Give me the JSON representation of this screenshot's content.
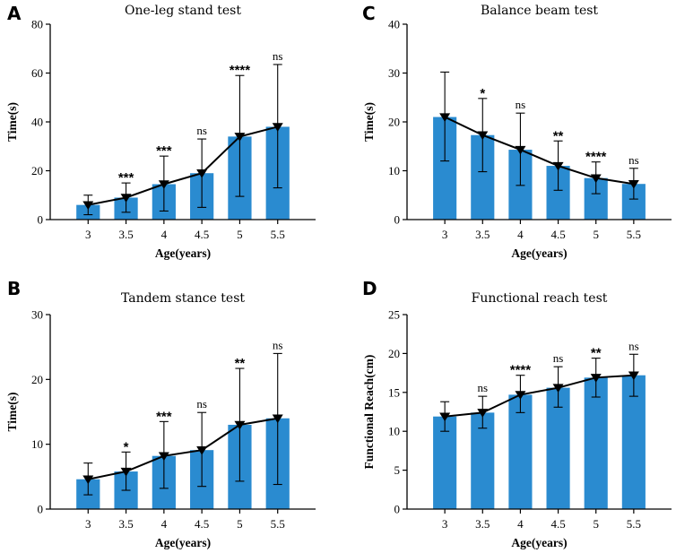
{
  "colors": {
    "bar": "#2a8bd0",
    "line": "#000000"
  },
  "chart_data": [
    {
      "panel": "A",
      "type": "bar",
      "title": "One-leg stand test",
      "xlabel": "Age(years)",
      "ylabel": "Time(s)",
      "categories": [
        "3",
        "3.5",
        "4",
        "4.5",
        "5",
        "5.5"
      ],
      "values": [
        6,
        9,
        14.5,
        19,
        34,
        38
      ],
      "err_low": [
        2,
        3,
        3.5,
        5,
        9.5,
        13
      ],
      "err_high": [
        10,
        15,
        26,
        33,
        59,
        63.5
      ],
      "significance": [
        "",
        "***",
        "***",
        "ns",
        "****",
        "ns"
      ],
      "ylim": [
        0,
        80
      ],
      "yticks": [
        "0",
        "20",
        "40",
        "60",
        "80"
      ]
    },
    {
      "panel": "C",
      "type": "bar",
      "title": "Balance beam test",
      "xlabel": "Age(years)",
      "ylabel": "Time(s)",
      "categories": [
        "3",
        "3.5",
        "4",
        "4.5",
        "5",
        "5.5"
      ],
      "values": [
        21,
        17.3,
        14.3,
        11,
        8.5,
        7.3
      ],
      "err_low": [
        12,
        9.8,
        7,
        6,
        5.3,
        4.2
      ],
      "err_high": [
        30.2,
        24.8,
        21.8,
        16.1,
        11.8,
        10.5
      ],
      "significance": [
        "",
        "*",
        "ns",
        "**",
        "****",
        "ns"
      ],
      "ylim": [
        0,
        40
      ],
      "yticks": [
        "0",
        "10",
        "20",
        "30",
        "40"
      ]
    },
    {
      "panel": "B",
      "type": "bar",
      "title": "Tandem stance test",
      "xlabel": "Age(years)",
      "ylabel": "Time(s)",
      "categories": [
        "3",
        "3.5",
        "4",
        "4.5",
        "5",
        "5.5"
      ],
      "values": [
        4.6,
        5.8,
        8.2,
        9.1,
        13,
        14
      ],
      "err_low": [
        2.2,
        2.9,
        3.2,
        3.5,
        4.3,
        3.8
      ],
      "err_high": [
        7.1,
        8.8,
        13.5,
        14.9,
        21.7,
        24
      ],
      "significance": [
        "",
        "*",
        "***",
        "ns",
        "**",
        "ns"
      ],
      "ylim": [
        0,
        30
      ],
      "yticks": [
        "0",
        "10",
        "20",
        "30"
      ]
    },
    {
      "panel": "D",
      "type": "bar",
      "title": "Functional reach test",
      "xlabel": "Age(years)",
      "ylabel": "Functional Reach(cm)",
      "categories": [
        "3",
        "3.5",
        "4",
        "4.5",
        "5",
        "5.5"
      ],
      "values": [
        11.9,
        12.4,
        14.7,
        15.6,
        16.9,
        17.2
      ],
      "err_low": [
        10,
        10.4,
        12.4,
        13.1,
        14.4,
        14.5
      ],
      "err_high": [
        13.8,
        14.5,
        17.2,
        18.3,
        19.4,
        19.9
      ],
      "significance": [
        "",
        "ns",
        "****",
        "ns",
        "**",
        "ns"
      ],
      "ylim": [
        0,
        25
      ],
      "yticks": [
        "0",
        "5",
        "10",
        "15",
        "20",
        "25"
      ]
    }
  ]
}
